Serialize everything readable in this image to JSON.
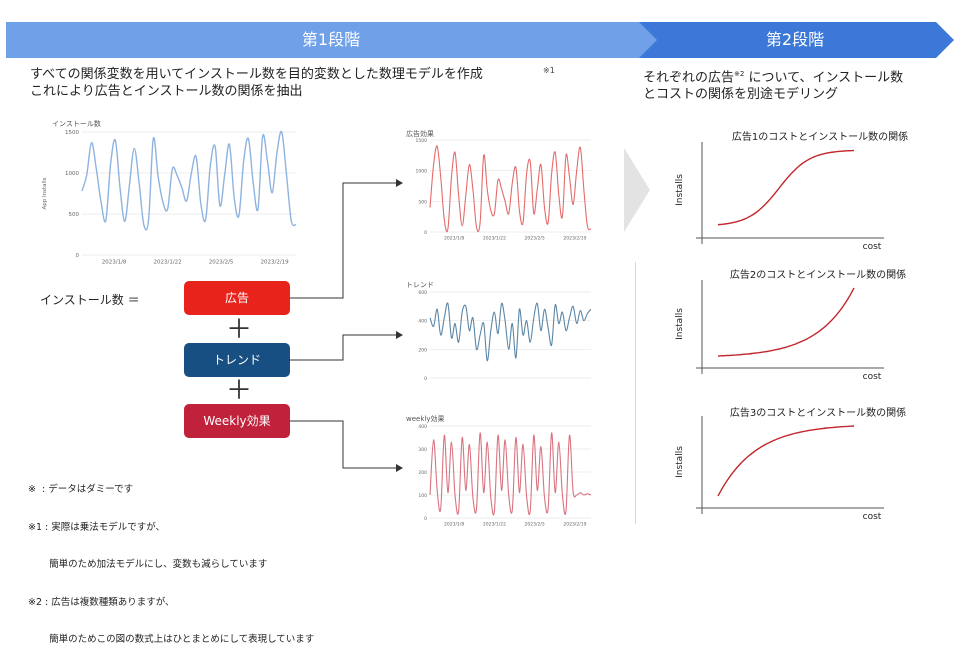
{
  "banners": {
    "stage1": "第1段階",
    "stage2": "第2段階"
  },
  "left_heading": {
    "line1": "すべての関係変数を用いてインストール数を目的変数とした数理モデルを作成",
    "line2": "これにより広告とインストール数の関係を抽出",
    "note_ref": "※1"
  },
  "right_heading": {
    "line1_pre": "それぞれの広告",
    "line1_sup": "※2",
    "line1_post": "について、インストール数",
    "line2": "とコストの関係を別途モデリング"
  },
  "equation": {
    "lhs": "インストール数 ＝",
    "plus": "＋",
    "terms": [
      {
        "label": "広告",
        "color": "#e8231c"
      },
      {
        "label": "トレンド",
        "color": "#184f82"
      },
      {
        "label": "Weekly効果",
        "color": "#c0223b"
      }
    ]
  },
  "footnotes": {
    "n0": "※  : データはダミーです",
    "n1a": "※1 : 実際は乗法モデルですが、",
    "n1b": "       簡単のため加法モデルにし、変数も減らしています",
    "n2a": "※2 : 広告は複数種類ありますが、",
    "n2b": "       簡単のためこの図の数式上はひとまとめにして表現しています"
  },
  "colors": {
    "install_line": "#8fb3e0",
    "ad_line": "#e46b6b",
    "trend_line": "#5b86a6",
    "weekly_line": "#d9737f",
    "curve": "#c1272d"
  },
  "chart_data": [
    {
      "type": "line",
      "title": "インストール数",
      "ylabel": "App Installs",
      "y_ticks": [
        "1500",
        "1000",
        "500",
        "0"
      ],
      "x_ticks": [
        "2023/1/8",
        "2023/1/22",
        "2023/2/5",
        "2023/2/19"
      ],
      "ylim": [
        0,
        1500
      ],
      "values": [
        780,
        980,
        1370,
        1050,
        650,
        420,
        1100,
        1400,
        820,
        410,
        870,
        1300,
        880,
        370,
        430,
        1420,
        960,
        650,
        560,
        1050,
        970,
        820,
        660,
        1000,
        1200,
        620,
        430,
        1100,
        1320,
        600,
        980,
        1350,
        700,
        480,
        1150,
        1420,
        880,
        560,
        1450,
        1140,
        760,
        1250,
        1500,
        980,
        420,
        370
      ]
    },
    {
      "type": "line",
      "title": "広告効果",
      "y_ticks": [
        "1500",
        "1000",
        "500",
        "0"
      ],
      "x_ticks": [
        "2023/1/8",
        "2023/1/22",
        "2023/2/5",
        "2023/2/19"
      ],
      "ylim": [
        0,
        1500
      ],
      "values": [
        400,
        1100,
        1400,
        900,
        200,
        50,
        900,
        1300,
        600,
        100,
        600,
        1100,
        700,
        80,
        150,
        1250,
        700,
        350,
        300,
        850,
        700,
        500,
        300,
        800,
        1050,
        350,
        150,
        950,
        1150,
        300,
        700,
        1100,
        400,
        150,
        950,
        1300,
        600,
        250,
        1250,
        900,
        450,
        1000,
        1380,
        700,
        100,
        50
      ]
    },
    {
      "type": "line",
      "title": "トレンド",
      "y_ticks": [
        "600",
        "400",
        "200",
        "0"
      ],
      "ylim": [
        0,
        600
      ],
      "values": [
        420,
        360,
        480,
        300,
        420,
        520,
        280,
        380,
        250,
        460,
        500,
        330,
        420,
        200,
        300,
        380,
        120,
        330,
        460,
        310,
        520,
        400,
        200,
        380,
        140,
        480,
        300,
        400,
        250,
        420,
        520,
        330,
        480,
        350,
        230,
        510,
        380,
        460,
        330,
        420,
        500,
        380,
        470,
        400,
        450,
        480
      ]
    },
    {
      "type": "line",
      "title": "weekly効果",
      "y_ticks": [
        "400",
        "300",
        "200",
        "100",
        "0"
      ],
      "x_ticks": [
        "2023/1/8",
        "2023/1/22",
        "2023/2/5",
        "2023/2/19"
      ],
      "ylim": [
        0,
        400
      ],
      "values": [
        100,
        340,
        120,
        40,
        360,
        110,
        330,
        100,
        30,
        350,
        120,
        320,
        90,
        40,
        370,
        110,
        330,
        90,
        30,
        360,
        120,
        340,
        100,
        35,
        350,
        110,
        320,
        95,
        30,
        360,
        120,
        310,
        90,
        40,
        370,
        110,
        330,
        100,
        30,
        360,
        115,
        100,
        110,
        100,
        105,
        100
      ]
    },
    {
      "type": "line",
      "title": "広告1のコストとインストール数の関係",
      "xlabel": "cost",
      "ylabel": "Installs",
      "shape": "sigmoid"
    },
    {
      "type": "line",
      "title": "広告2のコストとインストール数の関係",
      "xlabel": "cost",
      "ylabel": "Installs",
      "shape": "exponential"
    },
    {
      "type": "line",
      "title": "広告3のコストとインストール数の関係",
      "xlabel": "cost",
      "ylabel": "Installs",
      "shape": "saturating"
    }
  ]
}
